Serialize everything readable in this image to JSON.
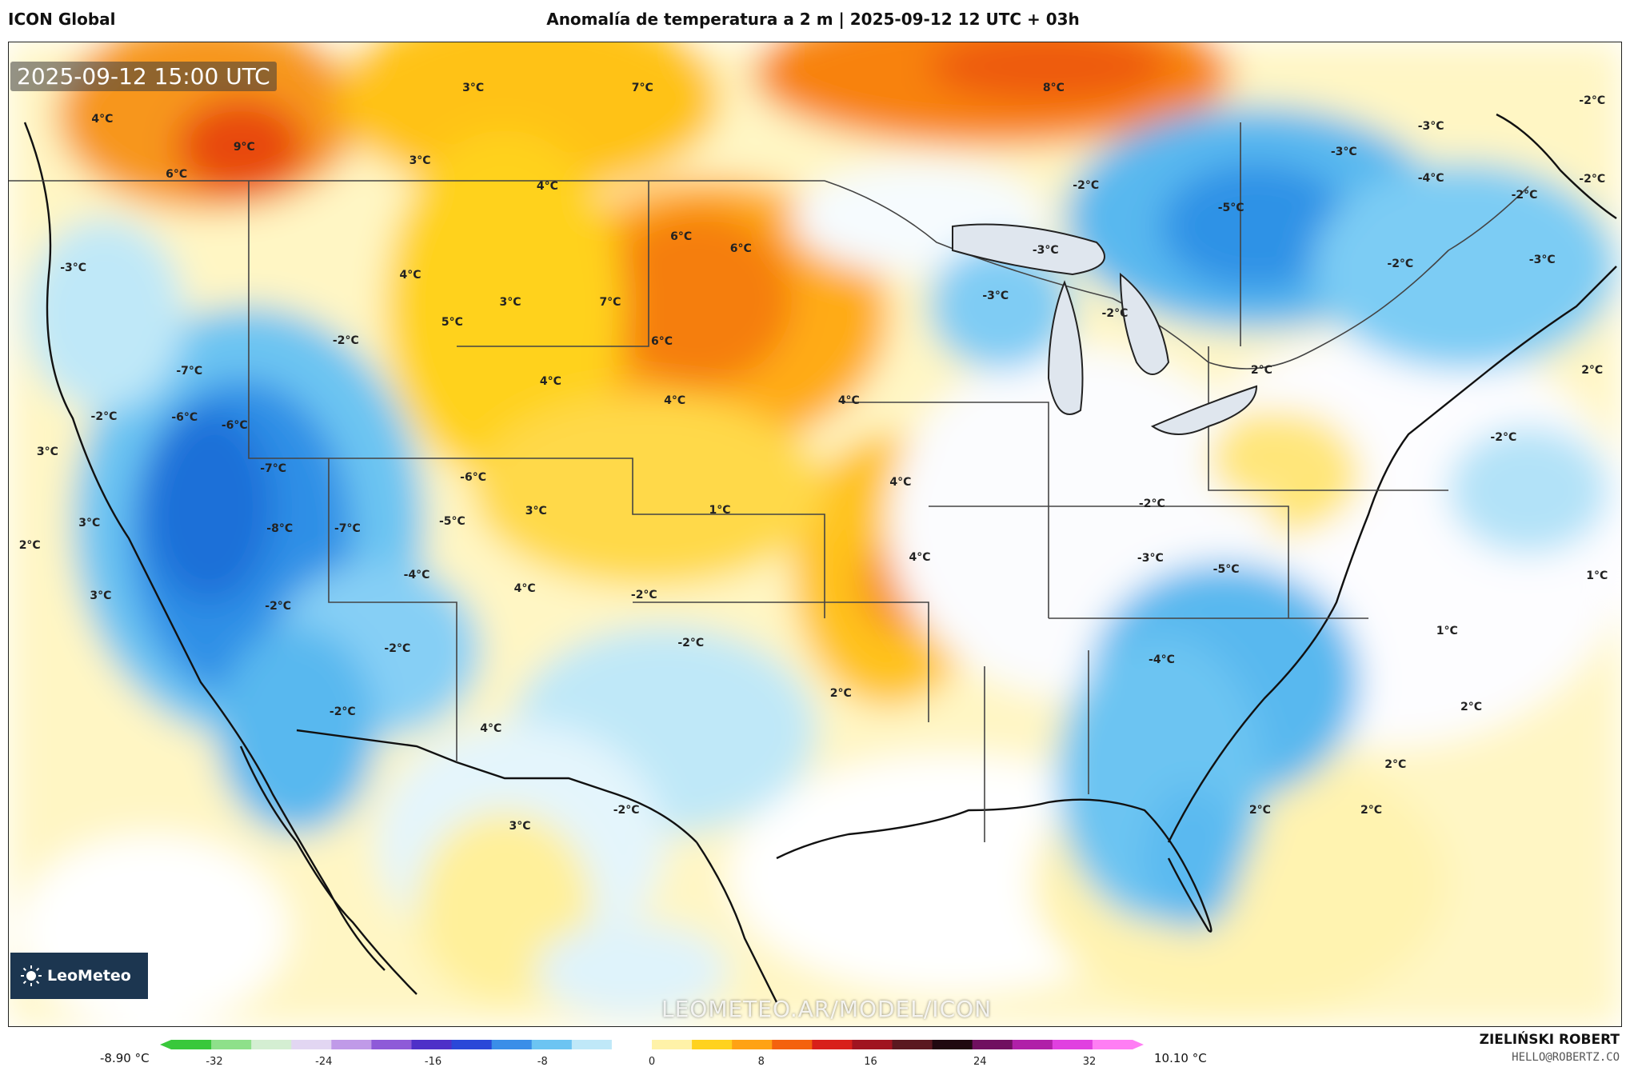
{
  "header": {
    "model": "ICON Global",
    "title": "Anomalía de temperatura a 2 m | 2025-09-12 12 UTC + 03h"
  },
  "map": {
    "timestamp": "2025-09-12 15:00 UTC",
    "watermark": "LEOMETEO.AR/MODEL/ICON",
    "logo_text": "LeoMeteo",
    "labels": [
      {
        "text": "3°C",
        "fx": 0.288,
        "fy": 0.022
      },
      {
        "text": "7°C",
        "fx": 0.393,
        "fy": 0.022
      },
      {
        "text": "8°C",
        "fx": 0.648,
        "fy": 0.022
      },
      {
        "text": "-2°C",
        "fx": 0.982,
        "fy": 0.035
      },
      {
        "text": "4°C",
        "fx": 0.058,
        "fy": 0.054
      },
      {
        "text": "9°C",
        "fx": 0.146,
        "fy": 0.082
      },
      {
        "text": "-3°C",
        "fx": 0.882,
        "fy": 0.061
      },
      {
        "text": "3°C",
        "fx": 0.255,
        "fy": 0.096
      },
      {
        "text": "-3°C",
        "fx": 0.828,
        "fy": 0.087
      },
      {
        "text": "6°C",
        "fx": 0.104,
        "fy": 0.11
      },
      {
        "text": "-4°C",
        "fx": 0.882,
        "fy": 0.114
      },
      {
        "text": "-2°C",
        "fx": 0.982,
        "fy": 0.115
      },
      {
        "text": "4°C",
        "fx": 0.334,
        "fy": 0.122
      },
      {
        "text": "-2°C",
        "fx": 0.668,
        "fy": 0.121
      },
      {
        "text": "-5°C",
        "fx": 0.758,
        "fy": 0.144
      },
      {
        "text": "-2°C",
        "fx": 0.94,
        "fy": 0.131
      },
      {
        "text": "6°C",
        "fx": 0.417,
        "fy": 0.173
      },
      {
        "text": "6°C",
        "fx": 0.454,
        "fy": 0.185
      },
      {
        "text": "-3°C",
        "fx": 0.643,
        "fy": 0.187
      },
      {
        "text": "-2°C",
        "fx": 0.863,
        "fy": 0.201
      },
      {
        "text": "-3°C",
        "fx": 0.951,
        "fy": 0.197
      },
      {
        "text": "-3°C",
        "fx": 0.04,
        "fy": 0.205
      },
      {
        "text": "4°C",
        "fx": 0.249,
        "fy": 0.212
      },
      {
        "text": "3°C",
        "fx": 0.311,
        "fy": 0.24
      },
      {
        "text": "7°C",
        "fx": 0.373,
        "fy": 0.24
      },
      {
        "text": "-3°C",
        "fx": 0.612,
        "fy": 0.233
      },
      {
        "text": "-2°C",
        "fx": 0.686,
        "fy": 0.251
      },
      {
        "text": "5°C",
        "fx": 0.275,
        "fy": 0.26
      },
      {
        "text": "-2°C",
        "fx": 0.209,
        "fy": 0.279
      },
      {
        "text": "6°C",
        "fx": 0.405,
        "fy": 0.28
      },
      {
        "text": "-7°C",
        "fx": 0.112,
        "fy": 0.31
      },
      {
        "text": "2°C",
        "fx": 0.777,
        "fy": 0.309
      },
      {
        "text": "2°C",
        "fx": 0.982,
        "fy": 0.309
      },
      {
        "text": "4°C",
        "fx": 0.336,
        "fy": 0.32
      },
      {
        "text": "4°C",
        "fx": 0.413,
        "fy": 0.34
      },
      {
        "text": "4°C",
        "fx": 0.521,
        "fy": 0.34
      },
      {
        "text": "-2°C",
        "fx": 0.059,
        "fy": 0.356
      },
      {
        "text": "-6°C",
        "fx": 0.109,
        "fy": 0.357
      },
      {
        "text": "-6°C",
        "fx": 0.14,
        "fy": 0.365
      },
      {
        "text": "-2°C",
        "fx": 0.927,
        "fy": 0.377
      },
      {
        "text": "3°C",
        "fx": 0.024,
        "fy": 0.392
      },
      {
        "text": "-7°C",
        "fx": 0.164,
        "fy": 0.409
      },
      {
        "text": "-6°C",
        "fx": 0.288,
        "fy": 0.418
      },
      {
        "text": "4°C",
        "fx": 0.553,
        "fy": 0.423
      },
      {
        "text": "1°C",
        "fx": 0.441,
        "fy": 0.451
      },
      {
        "text": "3°C",
        "fx": 0.327,
        "fy": 0.452
      },
      {
        "text": "-2°C",
        "fx": 0.709,
        "fy": 0.445
      },
      {
        "text": "3°C",
        "fx": 0.05,
        "fy": 0.464
      },
      {
        "text": "-5°C",
        "fx": 0.275,
        "fy": 0.463
      },
      {
        "text": "-8°C",
        "fx": 0.168,
        "fy": 0.47
      },
      {
        "text": "-7°C",
        "fx": 0.21,
        "fy": 0.47
      },
      {
        "text": "2°C",
        "fx": 0.013,
        "fy": 0.487
      },
      {
        "text": "-3°C",
        "fx": 0.708,
        "fy": 0.5
      },
      {
        "text": "4°C",
        "fx": 0.565,
        "fy": 0.499
      },
      {
        "text": "-5°C",
        "fx": 0.755,
        "fy": 0.511
      },
      {
        "text": "1°C",
        "fx": 0.985,
        "fy": 0.518
      },
      {
        "text": "-4°C",
        "fx": 0.253,
        "fy": 0.517
      },
      {
        "text": "4°C",
        "fx": 0.32,
        "fy": 0.531
      },
      {
        "text": "3°C",
        "fx": 0.057,
        "fy": 0.538
      },
      {
        "text": "-2°C",
        "fx": 0.394,
        "fy": 0.537
      },
      {
        "text": "-2°C",
        "fx": 0.167,
        "fy": 0.549
      },
      {
        "text": "1°C",
        "fx": 0.892,
        "fy": 0.574
      },
      {
        "text": "-2°C",
        "fx": 0.423,
        "fy": 0.586
      },
      {
        "text": "-2°C",
        "fx": 0.241,
        "fy": 0.592
      },
      {
        "text": "-4°C",
        "fx": 0.715,
        "fy": 0.603
      },
      {
        "text": "2°C",
        "fx": 0.516,
        "fy": 0.637
      },
      {
        "text": "2°C",
        "fx": 0.907,
        "fy": 0.651
      },
      {
        "text": "-2°C",
        "fx": 0.207,
        "fy": 0.656
      },
      {
        "text": "4°C",
        "fx": 0.299,
        "fy": 0.673
      },
      {
        "text": "2°C",
        "fx": 0.86,
        "fy": 0.71
      },
      {
        "text": "-2°C",
        "fx": 0.383,
        "fy": 0.756
      },
      {
        "text": "2°C",
        "fx": 0.776,
        "fy": 0.756
      },
      {
        "text": "2°C",
        "fx": 0.845,
        "fy": 0.756
      },
      {
        "text": "3°C",
        "fx": 0.317,
        "fy": 0.772
      }
    ]
  },
  "scale": {
    "min_label": "-8.90 °C",
    "max_label": "10.10 °C",
    "ticks": [
      "-32",
      "-24",
      "-16",
      "-8",
      "0",
      "8",
      "16",
      "24",
      "32"
    ],
    "colors": [
      "#39c83b",
      "#8ee08a",
      "#d4eed2",
      "#e2d6f2",
      "#c09ae8",
      "#8e5ad8",
      "#4e30c8",
      "#2a48d8",
      "#3a8ee8",
      "#6cc4f2",
      "#bfe8f8",
      "#ffffff",
      "#fff2a8",
      "#ffd21e",
      "#ffa214",
      "#f4620e",
      "#d8201a",
      "#a01420",
      "#5a1820",
      "#200810",
      "#701060",
      "#b020a8",
      "#e040e0",
      "#ff7ef4"
    ]
  },
  "footer": {
    "author": "ZIELIŃSKI ROBERT",
    "email": "HELLO@ROBERTZ.CO"
  }
}
